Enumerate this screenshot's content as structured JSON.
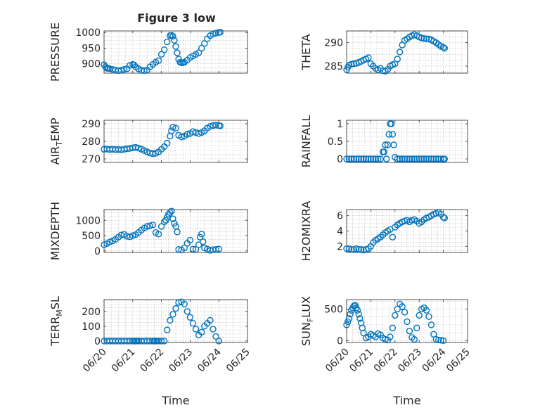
{
  "figure": {
    "title": "Figure 3 low"
  },
  "chart_data": [
    {
      "type": "scatter",
      "xlabel": "",
      "ylabel": "PRESSURE",
      "ylim": [
        870,
        1005
      ],
      "yticks": [
        900,
        950,
        1000
      ],
      "xlim": [
        0,
        5
      ],
      "xticks": [
        0,
        1,
        2,
        3,
        4,
        5
      ],
      "x": [
        0,
        0.05,
        0.1,
        0.15,
        0.2,
        0.3,
        0.4,
        0.5,
        0.6,
        0.7,
        0.8,
        0.9,
        1.0,
        1.05,
        1.1,
        1.2,
        1.3,
        1.4,
        1.5,
        1.6,
        1.7,
        1.8,
        1.9,
        2.0,
        2.1,
        2.2,
        2.3,
        2.35,
        2.4,
        2.45,
        2.5,
        2.55,
        2.6,
        2.65,
        2.7,
        2.75,
        2.8,
        2.9,
        3.0,
        3.1,
        3.2,
        3.3,
        3.4,
        3.5,
        3.6,
        3.7,
        3.8,
        3.9,
        4.0,
        4.05
      ],
      "values": [
        897,
        890,
        886,
        885,
        884,
        882,
        880,
        878,
        879,
        882,
        884,
        895,
        898,
        896,
        890,
        884,
        879,
        878,
        880,
        890,
        898,
        905,
        910,
        930,
        945,
        970,
        990,
        991,
        988,
        975,
        955,
        935,
        915,
        905,
        903,
        903,
        905,
        912,
        920,
        925,
        930,
        935,
        950,
        965,
        980,
        990,
        995,
        998,
        1000,
        1001
      ],
      "marker_color": "#0072BD"
    },
    {
      "type": "scatter",
      "xlabel": "",
      "ylabel": "THETA",
      "ylim": [
        283.5,
        292.5
      ],
      "yticks": [
        285,
        290
      ],
      "xlim": [
        0,
        5
      ],
      "xticks": [
        0,
        1,
        2,
        3,
        4,
        5
      ],
      "x": [
        0,
        0.05,
        0.1,
        0.2,
        0.3,
        0.4,
        0.5,
        0.6,
        0.7,
        0.8,
        0.9,
        1.0,
        1.1,
        1.2,
        1.3,
        1.4,
        1.5,
        1.6,
        1.7,
        1.8,
        1.9,
        2.0,
        2.1,
        2.2,
        2.3,
        2.4,
        2.5,
        2.6,
        2.7,
        2.8,
        2.9,
        3.0,
        3.1,
        3.2,
        3.3,
        3.4,
        3.5,
        3.6,
        3.7,
        3.8,
        3.9,
        4.0,
        4.05
      ],
      "values": [
        284.2,
        284.8,
        285.2,
        285.4,
        285.5,
        285.6,
        285.8,
        286.0,
        286.3,
        286.5,
        286.8,
        285.5,
        285.0,
        284.5,
        284.2,
        284.5,
        284.0,
        283.9,
        284.3,
        285.0,
        285.3,
        285.5,
        286.5,
        288.0,
        289.5,
        290.5,
        290.8,
        291.2,
        291.5,
        291.7,
        291.5,
        291.2,
        291.0,
        290.9,
        290.8,
        290.8,
        290.6,
        290.3,
        290.0,
        289.6,
        289.2,
        289.0,
        288.8
      ],
      "marker_color": "#0072BD"
    },
    {
      "type": "scatter",
      "xlabel": "",
      "ylabel": "AIR",
      "ylabel_sub": "T",
      "ylabel_rest": "EMP",
      "ylim": [
        268,
        292
      ],
      "yticks": [
        270,
        280,
        290
      ],
      "xlim": [
        0,
        5
      ],
      "xticks": [
        0,
        1,
        2,
        3,
        4,
        5
      ],
      "x": [
        0,
        0.1,
        0.2,
        0.3,
        0.4,
        0.5,
        0.6,
        0.7,
        0.8,
        0.9,
        1.0,
        1.1,
        1.2,
        1.3,
        1.4,
        1.5,
        1.6,
        1.7,
        1.8,
        1.9,
        2.0,
        2.1,
        2.2,
        2.3,
        2.35,
        2.4,
        2.5,
        2.6,
        2.7,
        2.8,
        2.9,
        3.0,
        3.1,
        3.2,
        3.3,
        3.4,
        3.5,
        3.6,
        3.7,
        3.8,
        3.9,
        4.0,
        4.05
      ],
      "values": [
        275.5,
        275.6,
        275.4,
        275.5,
        275.3,
        275.4,
        275.2,
        275.5,
        275.8,
        276.0,
        276.3,
        276.6,
        276.2,
        275.6,
        274.8,
        274.0,
        273.4,
        273.0,
        273.2,
        274.0,
        275.5,
        277.0,
        279.0,
        283.0,
        286.0,
        288.0,
        287.5,
        283.5,
        282.5,
        283.0,
        284.0,
        284.5,
        285.5,
        285.0,
        284.5,
        285.0,
        286.0,
        287.5,
        288.5,
        289.0,
        289.2,
        289.0,
        288.8
      ],
      "marker_color": "#0072BD"
    },
    {
      "type": "scatter",
      "xlabel": "",
      "ylabel": "RAINFALL",
      "ylim": [
        -0.1,
        1.1
      ],
      "yticks": [
        0,
        0.5,
        1
      ],
      "xlim": [
        0,
        5
      ],
      "xticks": [
        0,
        1,
        2,
        3,
        4,
        5
      ],
      "x": [
        0,
        0.1,
        0.2,
        0.3,
        0.4,
        0.5,
        0.6,
        0.7,
        0.8,
        0.9,
        1.0,
        1.1,
        1.2,
        1.3,
        1.4,
        1.5,
        1.55,
        1.6,
        1.65,
        1.7,
        1.75,
        1.8,
        1.85,
        1.9,
        1.95,
        2.0,
        2.1,
        2.2,
        2.3,
        2.4,
        2.5,
        2.6,
        2.7,
        2.8,
        2.9,
        3.0,
        3.1,
        3.2,
        3.3,
        3.4,
        3.5,
        3.6,
        3.7,
        3.8,
        3.9,
        4.0,
        4.05
      ],
      "values": [
        0,
        0,
        0,
        0,
        0,
        0,
        0,
        0,
        0,
        0,
        0,
        0,
        0,
        0,
        0,
        0.2,
        0.2,
        0.4,
        0,
        0.4,
        0.7,
        1.0,
        1.0,
        0.7,
        0.4,
        0.05,
        0,
        0,
        0,
        0,
        0,
        0,
        0,
        0,
        0,
        0,
        0,
        0,
        0,
        0,
        0,
        0,
        0,
        0,
        0,
        0,
        0
      ],
      "marker_color": "#0072BD"
    },
    {
      "type": "scatter",
      "xlabel": "",
      "ylabel": "MIXDEPTH",
      "ylim": [
        -50,
        1350
      ],
      "yticks": [
        0,
        500,
        1000
      ],
      "xlim": [
        0,
        5
      ],
      "xticks": [
        0,
        1,
        2,
        3,
        4,
        5
      ],
      "x": [
        0,
        0.1,
        0.2,
        0.3,
        0.4,
        0.5,
        0.6,
        0.7,
        0.8,
        0.9,
        1.0,
        1.1,
        1.2,
        1.3,
        1.4,
        1.5,
        1.6,
        1.7,
        1.8,
        1.9,
        2.0,
        2.1,
        2.15,
        2.2,
        2.25,
        2.3,
        2.35,
        2.4,
        2.45,
        2.5,
        2.55,
        2.6,
        2.7,
        2.8,
        2.9,
        3.0,
        3.1,
        3.2,
        3.3,
        3.35,
        3.4,
        3.45,
        3.5,
        3.6,
        3.7,
        3.8,
        3.9,
        4.0
      ],
      "values": [
        200,
        240,
        290,
        330,
        380,
        450,
        520,
        540,
        480,
        460,
        500,
        530,
        600,
        680,
        750,
        800,
        820,
        850,
        600,
        550,
        800,
        950,
        1000,
        1100,
        1200,
        1250,
        1300,
        1050,
        900,
        800,
        620,
        50,
        30,
        100,
        250,
        350,
        60,
        50,
        200,
        450,
        550,
        300,
        100,
        60,
        20,
        40,
        50,
        60
      ],
      "marker_color": "#0072BD"
    },
    {
      "type": "scatter",
      "xlabel": "",
      "ylabel": "H2OMIXRA",
      "ylim": [
        1.2,
        6.8
      ],
      "yticks": [
        2,
        4,
        6
      ],
      "xlim": [
        0,
        5
      ],
      "xticks": [
        0,
        1,
        2,
        3,
        4,
        5
      ],
      "x": [
        0,
        0.1,
        0.2,
        0.3,
        0.4,
        0.5,
        0.6,
        0.7,
        0.8,
        0.9,
        1.0,
        1.1,
        1.2,
        1.3,
        1.4,
        1.5,
        1.6,
        1.7,
        1.8,
        1.9,
        2.0,
        2.1,
        2.2,
        2.3,
        2.4,
        2.5,
        2.6,
        2.7,
        2.8,
        2.9,
        3.0,
        3.1,
        3.2,
        3.3,
        3.4,
        3.5,
        3.6,
        3.7,
        3.8,
        3.9,
        4.0,
        4.05
      ],
      "values": [
        1.7,
        1.7,
        1.6,
        1.6,
        1.7,
        1.6,
        1.6,
        1.5,
        1.6,
        1.7,
        2.0,
        2.5,
        2.8,
        3.0,
        3.2,
        3.5,
        3.8,
        4.0,
        4.2,
        3.2,
        4.5,
        4.8,
        5.0,
        5.2,
        5.3,
        5.4,
        5.2,
        5.4,
        5.5,
        5.3,
        5.0,
        5.2,
        5.5,
        5.7,
        5.8,
        6.0,
        6.2,
        6.3,
        6.4,
        6.2,
        5.8,
        5.7
      ],
      "marker_color": "#0072BD"
    },
    {
      "type": "scatter",
      "xlabel": "Time",
      "ylabel": "TERR",
      "ylabel_sub": "M",
      "ylabel_rest": "SL",
      "ylim": [
        -10,
        280
      ],
      "yticks": [
        0,
        100,
        200
      ],
      "xlim": [
        0,
        5
      ],
      "xticks": [
        0,
        1,
        2,
        3,
        4,
        5
      ],
      "xticklabels": [
        "06/20",
        "06/21",
        "06/22",
        "06/23",
        "06/24",
        "06/25"
      ],
      "x": [
        0,
        0.1,
        0.2,
        0.3,
        0.4,
        0.5,
        0.6,
        0.7,
        0.8,
        0.9,
        1.0,
        1.05,
        1.1,
        1.15,
        1.2,
        1.3,
        1.4,
        1.5,
        1.6,
        1.7,
        1.75,
        1.8,
        1.85,
        1.9,
        2.0,
        2.1,
        2.2,
        2.3,
        2.4,
        2.5,
        2.6,
        2.7,
        2.8,
        2.9,
        3.0,
        3.1,
        3.2,
        3.3,
        3.4,
        3.5,
        3.6,
        3.7,
        3.8,
        3.9,
        4.0
      ],
      "values": [
        0,
        0,
        0,
        0,
        0,
        0,
        0,
        0,
        0,
        0,
        0,
        0,
        0,
        0,
        0,
        0,
        0,
        0,
        0,
        0,
        0,
        0,
        0,
        0,
        0,
        0,
        75,
        140,
        180,
        220,
        260,
        265,
        250,
        200,
        160,
        120,
        80,
        40,
        60,
        100,
        120,
        140,
        80,
        30,
        0
      ],
      "marker_color": "#0072BD"
    },
    {
      "type": "scatter",
      "xlabel": "Time",
      "ylabel": "SUN",
      "ylabel_sub": "F",
      "ylabel_rest": "LUX",
      "ylim": [
        -30,
        650
      ],
      "yticks": [
        0,
        500
      ],
      "xlim": [
        0,
        5
      ],
      "xticks": [
        0,
        1,
        2,
        3,
        4,
        5
      ],
      "xticklabels": [
        "06/20",
        "06/21",
        "06/22",
        "06/23",
        "06/24",
        "06/25"
      ],
      "x": [
        0,
        0.05,
        0.1,
        0.15,
        0.2,
        0.25,
        0.3,
        0.35,
        0.4,
        0.45,
        0.5,
        0.55,
        0.6,
        0.65,
        0.7,
        0.8,
        0.9,
        1.0,
        1.1,
        1.2,
        1.3,
        1.4,
        1.5,
        1.6,
        1.7,
        1.8,
        1.9,
        2.0,
        2.1,
        2.2,
        2.3,
        2.4,
        2.5,
        2.6,
        2.7,
        2.8,
        2.9,
        3.0,
        3.1,
        3.2,
        3.3,
        3.4,
        3.5,
        3.6,
        3.7,
        3.8,
        3.9,
        4.0
      ],
      "values": [
        250,
        300,
        350,
        420,
        480,
        520,
        550,
        560,
        520,
        480,
        420,
        350,
        280,
        200,
        120,
        40,
        60,
        100,
        80,
        60,
        110,
        90,
        40,
        20,
        10,
        60,
        200,
        400,
        500,
        580,
        540,
        450,
        300,
        150,
        50,
        20,
        200,
        400,
        500,
        520,
        480,
        380,
        250,
        100,
        20,
        10,
        5,
        0
      ],
      "marker_color": "#0072BD"
    }
  ]
}
